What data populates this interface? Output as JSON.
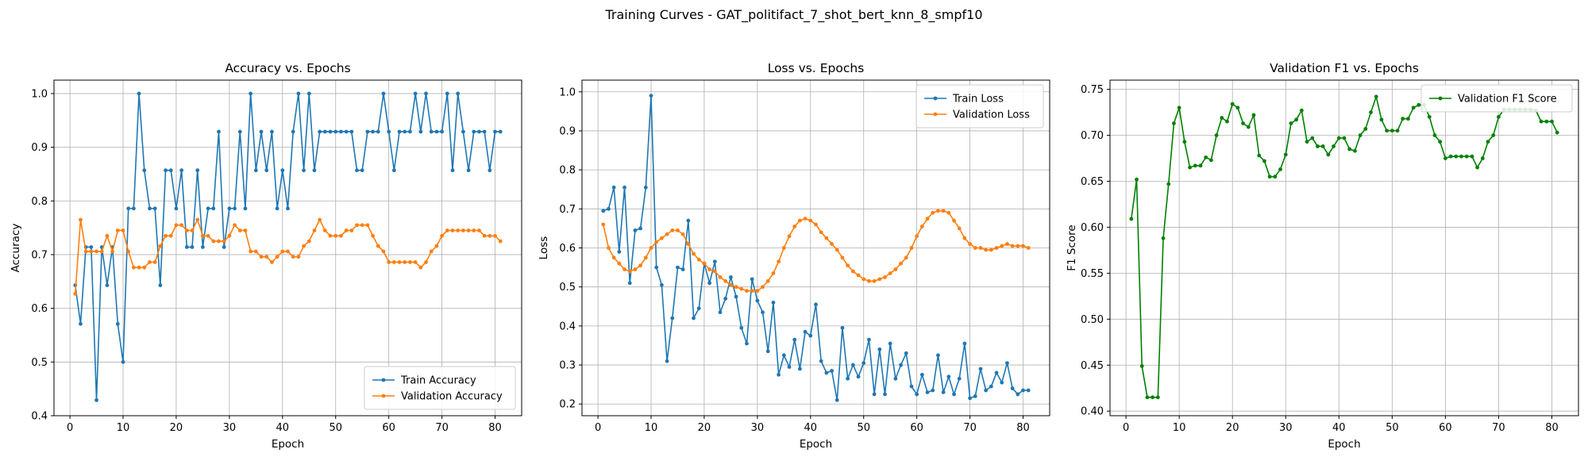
{
  "figure_title": "Training Curves - GAT_politifact_7_shot_bert_knn_8_smpf10",
  "chart_data": [
    {
      "type": "line",
      "title": "Accuracy vs. Epochs",
      "xlabel": "Epoch",
      "ylabel": "Accuracy",
      "xlim": [
        -3,
        85
      ],
      "ylim": [
        0.4,
        1.025
      ],
      "xticks": [
        0,
        10,
        20,
        30,
        40,
        50,
        60,
        70,
        80
      ],
      "yticks": [
        0.4,
        0.5,
        0.6,
        0.7,
        0.8,
        0.9,
        1.0
      ],
      "ytick_labels": [
        "0.4",
        "0.5",
        "0.6",
        "0.7",
        "0.8",
        "0.9",
        "1.0"
      ],
      "grid": true,
      "legend": "bottom-right",
      "x_start": 1,
      "series": [
        {
          "name": "Train Accuracy",
          "color": "#1f77b4",
          "values": [
            0.643,
            0.571,
            0.714,
            0.714,
            0.429,
            0.714,
            0.643,
            0.714,
            0.571,
            0.5,
            0.786,
            0.786,
            1.0,
            0.857,
            0.786,
            0.786,
            0.643,
            0.857,
            0.857,
            0.786,
            0.857,
            0.714,
            0.714,
            0.857,
            0.714,
            0.786,
            0.786,
            0.929,
            0.714,
            0.786,
            0.786,
            0.929,
            0.786,
            1.0,
            0.857,
            0.929,
            0.857,
            0.929,
            0.786,
            0.857,
            0.786,
            0.929,
            1.0,
            0.857,
            1.0,
            0.857,
            0.929,
            0.929,
            0.929,
            0.929,
            0.929,
            0.929,
            0.929,
            0.857,
            0.857,
            0.929,
            0.929,
            0.929,
            1.0,
            0.929,
            0.857,
            0.929,
            0.929,
            0.929,
            1.0,
            0.929,
            1.0,
            0.929,
            0.929,
            0.929,
            1.0,
            0.857,
            1.0,
            0.929,
            0.857,
            0.929,
            0.929,
            0.929,
            0.857,
            0.929,
            0.929
          ]
        },
        {
          "name": "Validation Accuracy",
          "color": "#ff7f0e",
          "values": [
            0.627,
            0.765,
            0.706,
            0.706,
            0.706,
            0.706,
            0.735,
            0.706,
            0.745,
            0.745,
            0.706,
            0.676,
            0.676,
            0.676,
            0.686,
            0.686,
            0.716,
            0.735,
            0.735,
            0.755,
            0.755,
            0.745,
            0.745,
            0.765,
            0.735,
            0.735,
            0.725,
            0.725,
            0.725,
            0.735,
            0.755,
            0.745,
            0.745,
            0.706,
            0.706,
            0.696,
            0.696,
            0.686,
            0.696,
            0.706,
            0.706,
            0.696,
            0.696,
            0.716,
            0.725,
            0.745,
            0.765,
            0.745,
            0.735,
            0.735,
            0.735,
            0.745,
            0.745,
            0.755,
            0.755,
            0.755,
            0.735,
            0.716,
            0.706,
            0.686,
            0.686,
            0.686,
            0.686,
            0.686,
            0.686,
            0.676,
            0.686,
            0.706,
            0.716,
            0.735,
            0.745,
            0.745,
            0.745,
            0.745,
            0.745,
            0.745,
            0.745,
            0.735,
            0.735,
            0.735,
            0.725
          ]
        }
      ]
    },
    {
      "type": "line",
      "title": "Loss vs. Epochs",
      "xlabel": "Epoch",
      "ylabel": "Loss",
      "xlim": [
        -3,
        85
      ],
      "ylim": [
        0.17,
        1.03
      ],
      "xticks": [
        0,
        10,
        20,
        30,
        40,
        50,
        60,
        70,
        80
      ],
      "yticks": [
        0.2,
        0.3,
        0.4,
        0.5,
        0.6,
        0.7,
        0.8,
        0.9,
        1.0
      ],
      "ytick_labels": [
        "0.2",
        "0.3",
        "0.4",
        "0.5",
        "0.6",
        "0.7",
        "0.8",
        "0.9",
        "1.0"
      ],
      "grid": true,
      "legend": "top-right",
      "x_start": 1,
      "series": [
        {
          "name": "Train Loss",
          "color": "#1f77b4",
          "values": [
            0.695,
            0.7,
            0.755,
            0.59,
            0.755,
            0.51,
            0.645,
            0.65,
            0.755,
            0.99,
            0.55,
            0.505,
            0.31,
            0.42,
            0.55,
            0.545,
            0.67,
            0.42,
            0.445,
            0.56,
            0.51,
            0.565,
            0.435,
            0.47,
            0.525,
            0.475,
            0.395,
            0.355,
            0.52,
            0.465,
            0.435,
            0.335,
            0.46,
            0.275,
            0.325,
            0.295,
            0.365,
            0.29,
            0.385,
            0.375,
            0.455,
            0.31,
            0.28,
            0.285,
            0.21,
            0.395,
            0.265,
            0.3,
            0.27,
            0.305,
            0.365,
            0.225,
            0.34,
            0.225,
            0.355,
            0.265,
            0.3,
            0.33,
            0.245,
            0.225,
            0.275,
            0.23,
            0.235,
            0.325,
            0.23,
            0.27,
            0.225,
            0.265,
            0.355,
            0.215,
            0.22,
            0.29,
            0.235,
            0.245,
            0.28,
            0.255,
            0.305,
            0.24,
            0.225,
            0.235,
            0.235
          ]
        },
        {
          "name": "Validation Loss",
          "color": "#ff7f0e",
          "values": [
            0.66,
            0.6,
            0.575,
            0.56,
            0.545,
            0.54,
            0.545,
            0.555,
            0.575,
            0.6,
            0.615,
            0.625,
            0.635,
            0.645,
            0.645,
            0.635,
            0.61,
            0.585,
            0.57,
            0.56,
            0.545,
            0.54,
            0.525,
            0.515,
            0.505,
            0.5,
            0.495,
            0.49,
            0.49,
            0.49,
            0.5,
            0.515,
            0.535,
            0.565,
            0.6,
            0.63,
            0.655,
            0.67,
            0.675,
            0.67,
            0.66,
            0.64,
            0.625,
            0.61,
            0.595,
            0.575,
            0.555,
            0.54,
            0.53,
            0.52,
            0.515,
            0.515,
            0.52,
            0.525,
            0.535,
            0.545,
            0.56,
            0.575,
            0.6,
            0.63,
            0.655,
            0.675,
            0.69,
            0.695,
            0.695,
            0.69,
            0.67,
            0.65,
            0.625,
            0.61,
            0.6,
            0.6,
            0.595,
            0.595,
            0.6,
            0.605,
            0.61,
            0.605,
            0.605,
            0.605,
            0.6
          ]
        }
      ]
    },
    {
      "type": "line",
      "title": "Validation F1 vs. Epochs",
      "xlabel": "Epoch",
      "ylabel": "F1 Score",
      "xlim": [
        -3,
        85
      ],
      "ylim": [
        0.395,
        0.76
      ],
      "xticks": [
        0,
        10,
        20,
        30,
        40,
        50,
        60,
        70,
        80
      ],
      "yticks": [
        0.4,
        0.45,
        0.5,
        0.55,
        0.6,
        0.65,
        0.7,
        0.75
      ],
      "ytick_labels": [
        "0.40",
        "0.45",
        "0.50",
        "0.55",
        "0.60",
        "0.65",
        "0.70",
        "0.75"
      ],
      "grid": true,
      "legend": "top-right",
      "x_start": 1,
      "series": [
        {
          "name": "Validation F1 Score",
          "color": "#008000",
          "values": [
            0.609,
            0.652,
            0.449,
            0.415,
            0.415,
            0.415,
            0.588,
            0.647,
            0.713,
            0.73,
            0.693,
            0.665,
            0.667,
            0.667,
            0.676,
            0.673,
            0.7,
            0.719,
            0.715,
            0.734,
            0.73,
            0.713,
            0.709,
            0.722,
            0.678,
            0.672,
            0.655,
            0.655,
            0.663,
            0.679,
            0.713,
            0.717,
            0.727,
            0.693,
            0.697,
            0.688,
            0.688,
            0.679,
            0.688,
            0.697,
            0.697,
            0.685,
            0.683,
            0.7,
            0.707,
            0.725,
            0.742,
            0.717,
            0.705,
            0.705,
            0.705,
            0.718,
            0.718,
            0.73,
            0.733,
            0.733,
            0.72,
            0.7,
            0.693,
            0.675,
            0.677,
            0.677,
            0.677,
            0.677,
            0.677,
            0.665,
            0.675,
            0.693,
            0.7,
            0.72,
            0.728,
            0.728,
            0.728,
            0.728,
            0.728,
            0.728,
            0.727,
            0.715,
            0.715,
            0.715,
            0.703
          ]
        }
      ]
    }
  ]
}
